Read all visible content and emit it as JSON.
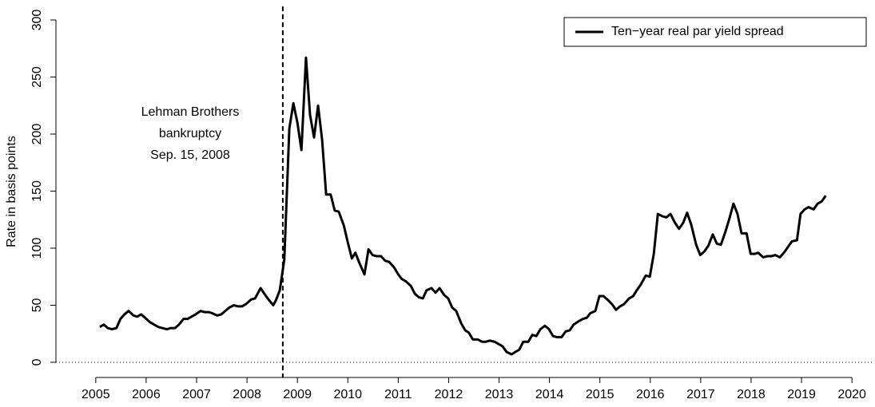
{
  "chart_data": {
    "type": "line",
    "y_label": "Rate in basis points",
    "annotation": [
      "Lehman Brothers",
      "bankruptcy",
      "Sep. 15, 2008"
    ],
    "vline": 2008.71,
    "hline": 0,
    "legend": "top-right",
    "x": [
      2005.08,
      2005.16,
      2005.24,
      2005.32,
      2005.41,
      2005.49,
      2005.57,
      2005.65,
      2005.75,
      2005.82,
      2005.9,
      2005.98,
      2006.08,
      2006.16,
      2006.24,
      2006.32,
      2006.41,
      2006.49,
      2006.57,
      2006.65,
      2006.74,
      2006.82,
      2006.9,
      2006.98,
      2007.08,
      2007.16,
      2007.24,
      2007.31,
      2007.41,
      2007.49,
      2007.57,
      2007.65,
      2007.74,
      2007.82,
      2007.9,
      2007.98,
      2008.08,
      2008.16,
      2008.27,
      2008.33,
      2008.41,
      2008.52,
      2008.57,
      2008.65,
      2008.74,
      2008.84,
      2008.92,
      2009.0,
      2009.08,
      2009.17,
      2009.25,
      2009.33,
      2009.41,
      2009.49,
      2009.57,
      2009.66,
      2009.74,
      2009.82,
      2009.92,
      2010.0,
      2010.08,
      2010.15,
      2010.23,
      2010.33,
      2010.41,
      2010.49,
      2010.57,
      2010.66,
      2010.74,
      2010.82,
      2010.92,
      2011.0,
      2011.07,
      2011.15,
      2011.25,
      2011.33,
      2011.41,
      2011.49,
      2011.56,
      2011.66,
      2011.74,
      2011.82,
      2011.91,
      2011.99,
      2012.07,
      2012.15,
      2012.25,
      2012.33,
      2012.4,
      2012.48,
      2012.58,
      2012.66,
      2012.74,
      2012.82,
      2012.91,
      2012.99,
      2013.07,
      2013.15,
      2013.25,
      2013.32,
      2013.4,
      2013.48,
      2013.58,
      2013.66,
      2013.74,
      2013.82,
      2013.91,
      2013.99,
      2014.07,
      2014.15,
      2014.24,
      2014.32,
      2014.4,
      2014.48,
      2014.58,
      2014.66,
      2014.74,
      2014.81,
      2014.91,
      2014.99,
      2015.07,
      2015.15,
      2015.24,
      2015.32,
      2015.4,
      2015.48,
      2015.58,
      2015.66,
      2015.73,
      2015.81,
      2015.91,
      2015.99,
      2016.07,
      2016.15,
      2016.24,
      2016.32,
      2016.4,
      2016.48,
      2016.57,
      2016.65,
      2016.73,
      2016.81,
      2016.91,
      2016.99,
      2017.07,
      2017.15,
      2017.24,
      2017.32,
      2017.4,
      2017.48,
      2017.57,
      2017.65,
      2017.73,
      2017.81,
      2017.91,
      2017.99,
      2018.07,
      2018.14,
      2018.24,
      2018.32,
      2018.4,
      2018.48,
      2018.57,
      2018.65,
      2018.73,
      2018.81,
      2018.91,
      2018.98,
      2019.06,
      2019.14,
      2019.24,
      2019.32,
      2019.4,
      2019.48
    ],
    "series": [
      {
        "name": "Ten−year real par yield spread",
        "color": "#000000",
        "values": [
          31,
          33,
          30,
          29,
          30,
          38,
          42,
          45,
          41,
          40,
          42,
          39,
          35,
          33,
          31,
          30,
          29,
          30,
          30,
          33,
          38,
          38,
          40,
          42,
          45,
          44,
          44,
          43,
          41,
          42,
          45,
          48,
          50,
          49,
          49,
          51,
          55,
          56,
          65,
          61,
          56,
          50,
          54,
          63,
          90,
          205,
          227,
          210,
          186,
          267,
          217,
          197,
          225,
          195,
          147,
          147,
          133,
          132,
          120,
          105,
          91,
          96,
          87,
          77,
          99,
          94,
          93,
          93,
          89,
          88,
          83,
          77,
          73,
          71,
          67,
          60,
          57,
          56,
          63,
          65,
          61,
          65,
          59,
          56,
          48,
          45,
          34,
          28,
          26,
          20,
          20,
          18,
          18,
          19,
          18,
          16,
          14,
          9,
          7,
          9,
          11,
          18,
          18,
          24,
          23,
          29,
          32,
          29,
          23,
          22,
          22,
          27,
          28,
          33,
          36,
          38,
          39,
          43,
          45,
          58,
          58,
          55,
          51,
          46,
          49,
          51,
          56,
          58,
          63,
          68,
          76,
          75,
          95,
          130,
          128,
          127,
          130,
          123,
          117,
          122,
          131,
          121,
          103,
          94,
          97,
          102,
          112,
          104,
          103,
          113,
          126,
          139,
          130,
          113,
          113,
          95,
          95,
          96,
          92,
          93,
          93,
          94,
          92,
          96,
          101,
          106,
          107,
          130,
          134,
          136,
          134,
          139,
          141,
          146
        ]
      }
    ],
    "xlim": [
      2004.21,
      2020.41
    ],
    "ylim": [
      -13.3,
      311.9
    ],
    "xticks": [
      2005,
      2006,
      2007,
      2008,
      2009,
      2010,
      2011,
      2012,
      2013,
      2014,
      2015,
      2016,
      2017,
      2018,
      2019,
      2020
    ],
    "yticks": [
      0,
      50,
      100,
      150,
      200,
      250,
      300
    ]
  }
}
